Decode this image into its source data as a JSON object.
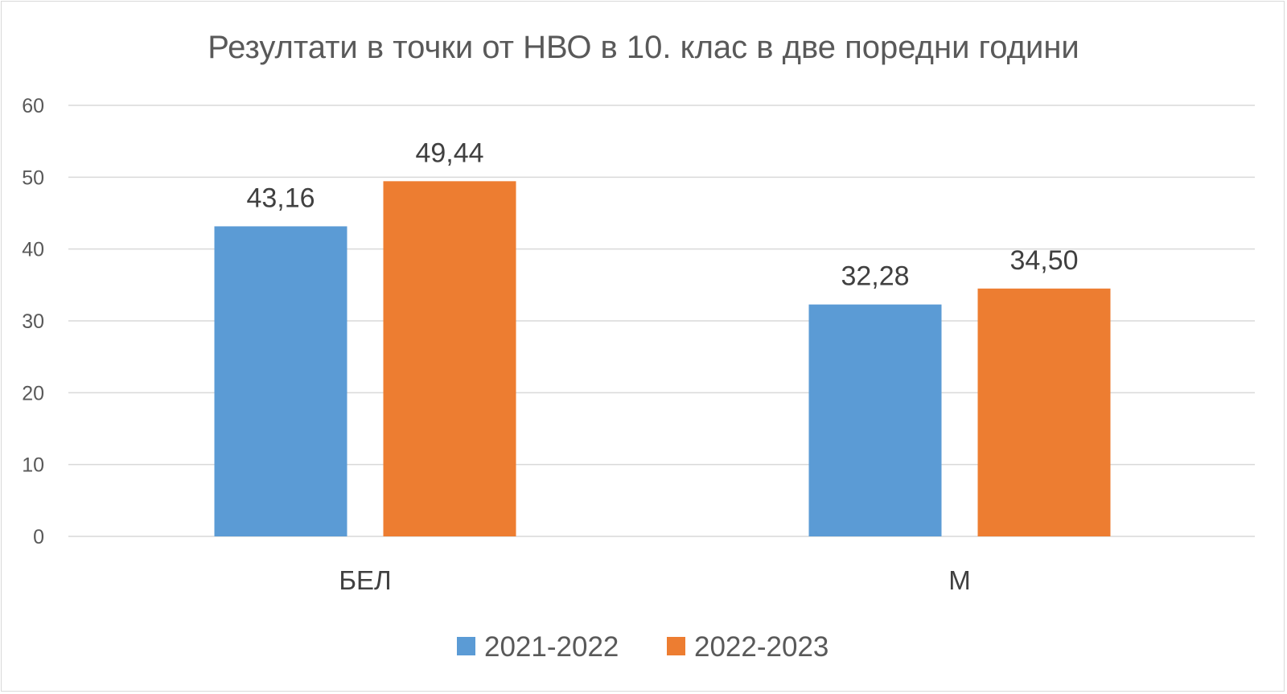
{
  "chart_data": {
    "type": "bar",
    "title": "Резултати в точки от НВО в 10. клас в две поредни години",
    "categories": [
      "БЕЛ",
      "М"
    ],
    "series": [
      {
        "name": "2021-2022",
        "values": [
          43.16,
          32.28
        ],
        "labels": [
          "43,16",
          "32,28"
        ],
        "color": "#5b9bd5"
      },
      {
        "name": "2022-2023",
        "values": [
          49.44,
          34.5
        ],
        "labels": [
          "49,44",
          "34,50"
        ],
        "color": "#ed7d31"
      }
    ],
    "y_ticks": [
      "0",
      "10",
      "20",
      "30",
      "40",
      "50",
      "60"
    ],
    "ylim": [
      0,
      60
    ],
    "xlabel": "",
    "ylabel": "",
    "grid": true,
    "legend_position": "bottom"
  }
}
